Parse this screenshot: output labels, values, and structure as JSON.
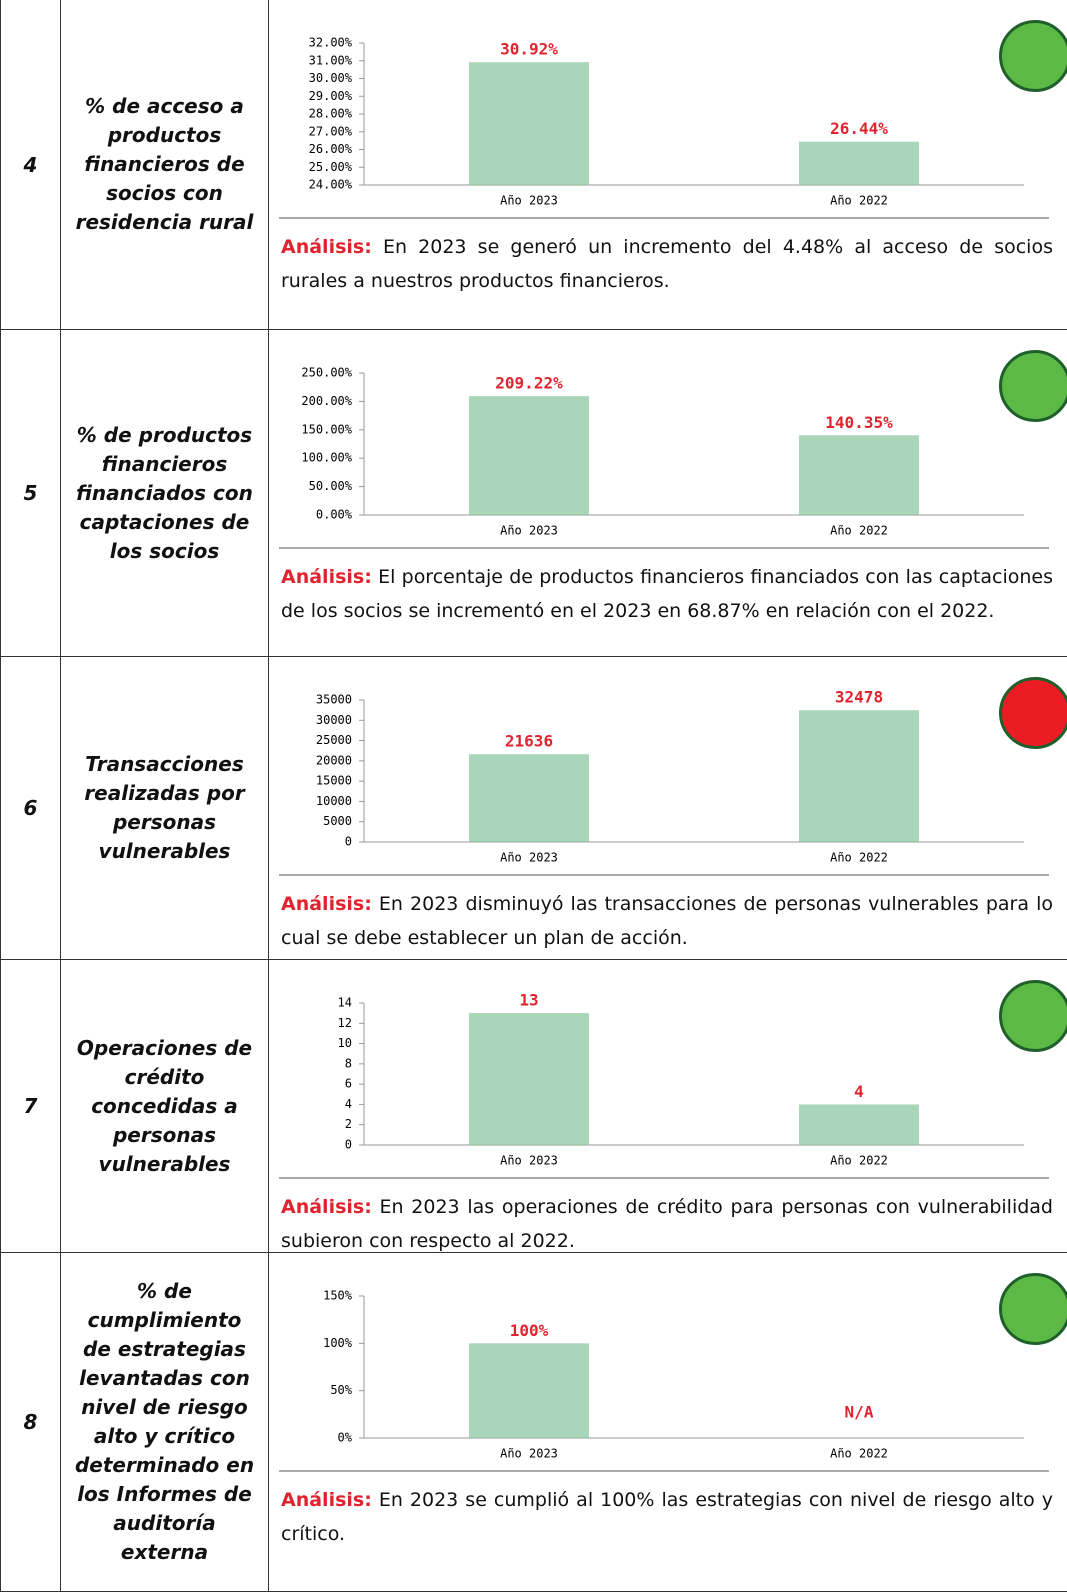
{
  "rows": [
    {
      "number": "4",
      "indicator": "% de acceso a productos financieros de socios con residencia rural",
      "chart": {
        "type": "bar",
        "categories": [
          "Año 2023",
          "Año 2022"
        ],
        "values": [
          30.92,
          26.44
        ],
        "value_labels": [
          "30.92%",
          "26.44%"
        ],
        "ylim": [
          24,
          32
        ],
        "yticks": [
          {
            "value": 24,
            "label": "24.00%"
          },
          {
            "value": 25,
            "label": "25.00%"
          },
          {
            "value": 26,
            "label": "26.00%"
          },
          {
            "value": 27,
            "label": "27.00%"
          },
          {
            "value": 28,
            "label": "28.00%"
          },
          {
            "value": 29,
            "label": "29.00%"
          },
          {
            "value": 30,
            "label": "30.00%"
          },
          {
            "value": 31,
            "label": "31.00%"
          },
          {
            "value": 32,
            "label": "32.00%"
          }
        ]
      },
      "analysis_label": "Análisis:",
      "analysis": "En 2023 se generó un incremento del 4.48% al acceso de socios rurales a nuestros productos financieros.",
      "status_color": "#5cb946"
    },
    {
      "number": "5",
      "indicator": "% de productos financieros financiados con captaciones de los socios",
      "chart": {
        "type": "bar",
        "categories": [
          "Año 2023",
          "Año 2022"
        ],
        "values": [
          209.22,
          140.35
        ],
        "value_labels": [
          "209.22%",
          "140.35%"
        ],
        "ylim": [
          0,
          250
        ],
        "yticks": [
          {
            "value": 0,
            "label": "0.00%"
          },
          {
            "value": 50,
            "label": "50.00%"
          },
          {
            "value": 100,
            "label": "100.00%"
          },
          {
            "value": 150,
            "label": "150.00%"
          },
          {
            "value": 200,
            "label": "200.00%"
          },
          {
            "value": 250,
            "label": "250.00%"
          }
        ]
      },
      "analysis_label": "Análisis:",
      "analysis": "El porcentaje de productos financieros financiados con las captaciones de los socios se incrementó en el 2023 en 68.87% en relación con el 2022.",
      "status_color": "#5cb946"
    },
    {
      "number": "6",
      "indicator": "Transacciones realizadas por personas vulnerables",
      "chart": {
        "type": "bar",
        "categories": [
          "Año 2023",
          "Año 2022"
        ],
        "values": [
          21636,
          32478
        ],
        "ylim": [
          0,
          35000
        ],
        "yticks": [
          0,
          5000,
          10000,
          15000,
          20000,
          25000,
          30000,
          35000
        ]
      },
      "analysis_label": "Análisis:",
      "analysis": "En 2023 disminuyó las transacciones de personas vulnerables para lo cual se debe establecer un plan de acción.",
      "status_color": "#ec1c24"
    },
    {
      "number": "7",
      "indicator": "Operaciones de crédito concedidas a personas vulnerables",
      "chart": {
        "type": "bar",
        "categories": [
          "Año 2023",
          "Año 2022"
        ],
        "values": [
          13,
          4
        ],
        "ylim": [
          0,
          14
        ],
        "yticks": [
          0,
          2,
          4,
          6,
          8,
          10,
          12,
          14
        ]
      },
      "analysis_label": "Análisis:",
      "analysis": "En 2023 las operaciones de crédito para personas con vulnerabilidad subieron con respecto al 2022.",
      "status_color": "#5cb946"
    },
    {
      "number": "8",
      "indicator": "% de cumplimiento de estrategias levantadas con nivel de riesgo alto y crítico determinado en los Informes de auditoría externa",
      "chart": {
        "type": "bar",
        "categories": [
          "Año 2023",
          "Año 2022"
        ],
        "values": [
          100,
          null
        ],
        "value_labels": [
          "100%",
          "N/A"
        ],
        "ylim": [
          0,
          150
        ],
        "yticks": [
          {
            "value": 0,
            "label": "0%"
          },
          {
            "value": 50,
            "label": "50%"
          },
          {
            "value": 100,
            "label": "100%"
          },
          {
            "value": 150,
            "label": "150%"
          }
        ]
      },
      "analysis_label": "Análisis:",
      "analysis": "En 2023 se cumplió al 100% las estrategias con nivel de riesgo alto y crítico.",
      "status_color": "#5cb946"
    }
  ]
}
